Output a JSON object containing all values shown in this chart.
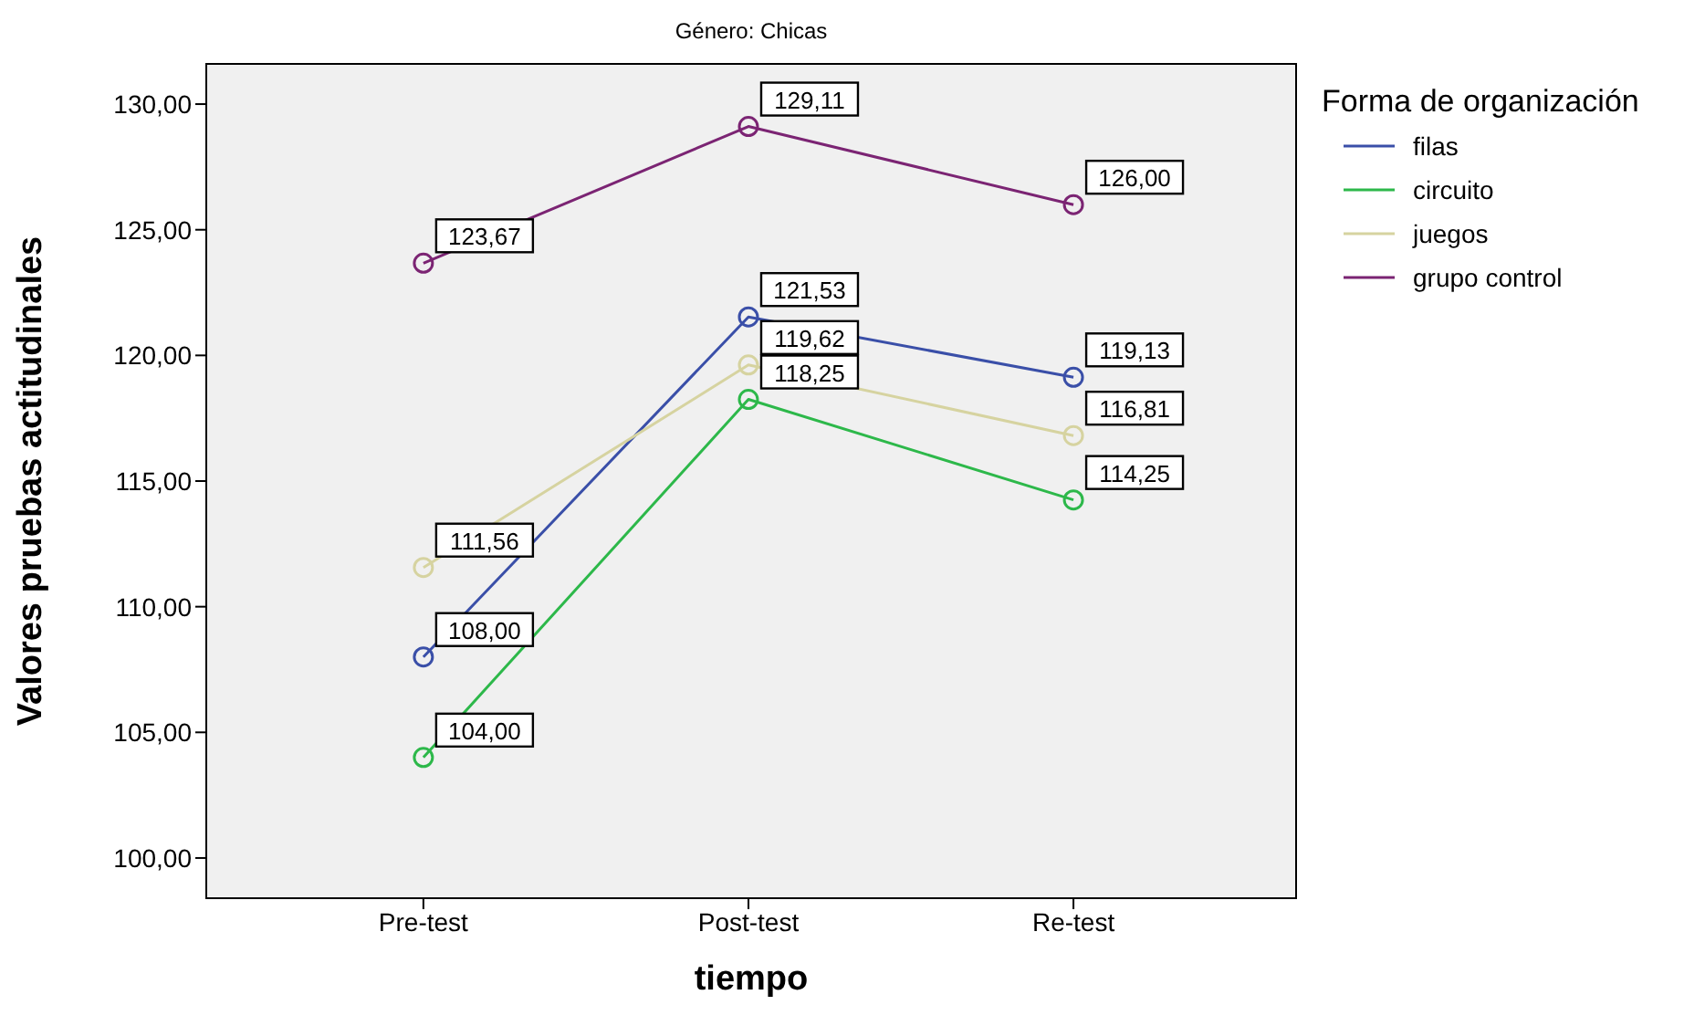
{
  "chart_data": {
    "type": "line",
    "title": "Género: Chicas",
    "xlabel": "tiempo",
    "ylabel": "Valores pruebas actitudinales",
    "legend_title": "Forma de organización",
    "categories": [
      "Pre-test",
      "Post-test",
      "Re-test"
    ],
    "series": [
      {
        "name": "filas",
        "color": "#3a4fa8",
        "values": [
          108.0,
          121.53,
          119.13
        ],
        "value_labels": [
          "108,00",
          "121,53",
          "119,13"
        ]
      },
      {
        "name": "circuito",
        "color": "#2db84a",
        "values": [
          104.0,
          118.25,
          114.25
        ],
        "value_labels": [
          "104,00",
          "118,25",
          "114,25"
        ]
      },
      {
        "name": "juegos",
        "color": "#d6d3a0",
        "values": [
          111.56,
          119.62,
          116.81
        ],
        "value_labels": [
          "111,56",
          "119,62",
          "116,81"
        ]
      },
      {
        "name": "grupo control",
        "color": "#7b2473",
        "values": [
          123.67,
          129.11,
          126.0
        ],
        "value_labels": [
          "123,67",
          "129,11",
          "126,00"
        ]
      }
    ],
    "ylim": [
      98.4,
      131.6
    ],
    "yticks": [
      {
        "value": 100,
        "label": "100,00"
      },
      {
        "value": 105,
        "label": "105,00"
      },
      {
        "value": 110,
        "label": "110,00"
      },
      {
        "value": 115,
        "label": "115,00"
      },
      {
        "value": 120,
        "label": "120,00"
      },
      {
        "value": 125,
        "label": "125,00"
      },
      {
        "value": 130,
        "label": "130,00"
      }
    ],
    "legend": "top right",
    "marker": "circle",
    "line_style": "solid"
  }
}
